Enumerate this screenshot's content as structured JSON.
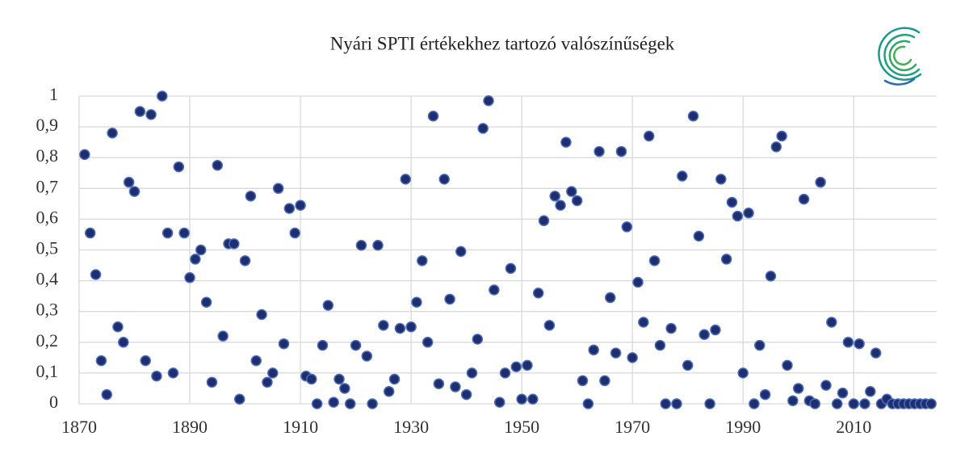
{
  "chart_data": {
    "type": "scatter",
    "title": "Nyári SPTI értékekhez tartozó valószínűségek",
    "x": [
      1871,
      1872,
      1873,
      1874,
      1875,
      1876,
      1877,
      1878,
      1879,
      1880,
      1881,
      1882,
      1883,
      1884,
      1885,
      1886,
      1887,
      1888,
      1889,
      1890,
      1891,
      1892,
      1893,
      1894,
      1895,
      1896,
      1897,
      1898,
      1899,
      1900,
      1901,
      1902,
      1903,
      1904,
      1905,
      1906,
      1907,
      1908,
      1909,
      1910,
      1911,
      1912,
      1913,
      1914,
      1915,
      1916,
      1917,
      1918,
      1919,
      1920,
      1921,
      1922,
      1923,
      1924,
      1925,
      1926,
      1927,
      1928,
      1929,
      1930,
      1931,
      1932,
      1933,
      1934,
      1935,
      1936,
      1937,
      1938,
      1939,
      1940,
      1941,
      1942,
      1943,
      1944,
      1945,
      1946,
      1947,
      1948,
      1949,
      1950,
      1951,
      1952,
      1953,
      1954,
      1955,
      1956,
      1957,
      1958,
      1959,
      1960,
      1961,
      1962,
      1963,
      1964,
      1965,
      1966,
      1967,
      1968,
      1969,
      1970,
      1971,
      1972,
      1973,
      1974,
      1975,
      1976,
      1977,
      1978,
      1979,
      1980,
      1981,
      1982,
      1983,
      1984,
      1985,
      1986,
      1987,
      1988,
      1989,
      1990,
      1991,
      1992,
      1993,
      1994,
      1995,
      1996,
      1997,
      1998,
      1999,
      2000,
      2001,
      2002,
      2003,
      2004,
      2005,
      2006,
      2007,
      2008,
      2009,
      2010,
      2011,
      2012,
      2013,
      2014,
      2015,
      2016,
      2017,
      2018,
      2019,
      2020,
      2021,
      2022,
      2023,
      2024
    ],
    "values": [
      0.81,
      0.555,
      0.42,
      0.14,
      0.03,
      0.88,
      0.25,
      0.2,
      0.72,
      0.69,
      0.95,
      0.14,
      0.94,
      0.09,
      1.0,
      0.555,
      0.1,
      0.77,
      0.555,
      0.41,
      0.47,
      0.5,
      0.33,
      0.07,
      0.775,
      0.22,
      0.52,
      0.52,
      0.015,
      0.465,
      0.675,
      0.14,
      0.29,
      0.07,
      0.1,
      0.7,
      0.195,
      0.635,
      0.555,
      0.645,
      0.09,
      0.08,
      0,
      0.19,
      0.32,
      0.005,
      0.08,
      0.05,
      0,
      0.19,
      0.515,
      0.155,
      0,
      0.515,
      0.255,
      0.04,
      0.08,
      0.245,
      0.73,
      0.25,
      0.33,
      0.465,
      0.2,
      0.935,
      0.065,
      0.73,
      0.34,
      0.055,
      0.495,
      0.03,
      0.1,
      0.21,
      0.895,
      0.985,
      0.37,
      0.005,
      0.1,
      0.44,
      0.12,
      0.015,
      0.125,
      0.015,
      0.36,
      0.595,
      0.255,
      0.675,
      0.645,
      0.85,
      0.69,
      0.66,
      0.075,
      0,
      0.175,
      0.82,
      0.075,
      0.345,
      0.165,
      0.82,
      0.575,
      0.15,
      0.395,
      0.265,
      0.87,
      0.465,
      0.19,
      0,
      0.245,
      0,
      0.74,
      0.125,
      0.935,
      0.545,
      0.225,
      0,
      0.24,
      0.73,
      0.47,
      0.655,
      0.61,
      0.1,
      0.62,
      0,
      0.19,
      0.03,
      0.415,
      0.835,
      0.87,
      0.125,
      0.01,
      0.05,
      0.665,
      0.01,
      0,
      0.72,
      0.06,
      0.265,
      0,
      0.035,
      0.2,
      0,
      0.195,
      0,
      0.04,
      0.165,
      0,
      0.015,
      0,
      0,
      0,
      0,
      0,
      0,
      0,
      0
    ],
    "color": "#1f2f6e",
    "xlim": [
      1870,
      2025
    ],
    "xticks": [
      1870,
      1890,
      1910,
      1930,
      1950,
      1970,
      1990,
      2010
    ],
    "ylim": [
      0,
      1
    ],
    "yticks": [
      0,
      {
        "value": 0.1,
        "label": "0,1"
      },
      {
        "value": 0.2,
        "label": "0,2"
      },
      {
        "value": 0.3,
        "label": "0,3"
      },
      {
        "value": 0.4,
        "label": "0,4"
      },
      {
        "value": 0.5,
        "label": "0,5"
      },
      {
        "value": 0.6,
        "label": "0,6"
      },
      {
        "value": 0.7,
        "label": "0,7"
      },
      {
        "value": 0.8,
        "label": "0,8"
      },
      {
        "value": 0.9,
        "label": "0,9"
      },
      1
    ],
    "grid": true
  }
}
